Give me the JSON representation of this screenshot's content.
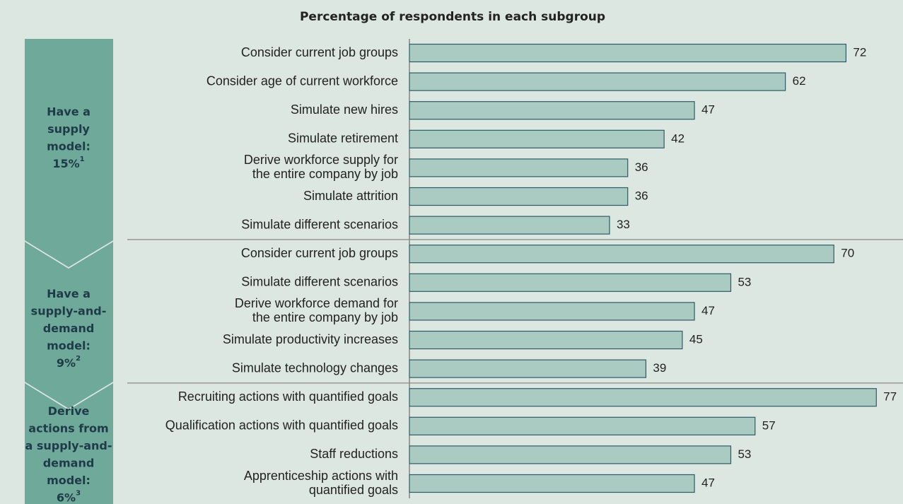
{
  "chart_data": {
    "type": "bar",
    "orientation": "horizontal",
    "title": "Percentage of respondents in each subgroup",
    "color": "#a9cbc2",
    "edgecolor": "#2e5a66",
    "xlim": [
      0,
      80
    ],
    "groups": [
      {
        "label": [
          "Have a",
          "supply",
          "model:",
          "15%"
        ],
        "note": "1",
        "categories": [
          [
            "Consider current job groups"
          ],
          [
            "Consider age of current workforce"
          ],
          [
            "Simulate new hires"
          ],
          [
            "Simulate retirement"
          ],
          [
            "Derive workforce supply for",
            "the entire company by job"
          ],
          [
            "Simulate attrition"
          ],
          [
            "Simulate different scenarios"
          ]
        ],
        "values": [
          72,
          62,
          47,
          42,
          36,
          36,
          33
        ]
      },
      {
        "label": [
          "Have a",
          "supply-and-",
          "demand",
          "model:",
          "9%"
        ],
        "note": "2",
        "categories": [
          [
            "Consider current job groups"
          ],
          [
            "Simulate different scenarios"
          ],
          [
            "Derive workforce demand for",
            "the entire company by job"
          ],
          [
            "Simulate productivity increases"
          ],
          [
            "Simulate technology changes"
          ]
        ],
        "values": [
          70,
          53,
          47,
          45,
          39
        ]
      },
      {
        "label": [
          "Derive",
          "actions from",
          "a supply-and-",
          "demand",
          "model:",
          "6%"
        ],
        "note": "3",
        "categories": [
          [
            "Recruiting actions with quantified goals"
          ],
          [
            "Qualification actions with quantified goals"
          ],
          [
            "Staff reductions"
          ],
          [
            "Apprenticeship actions with",
            "quantified goals"
          ]
        ],
        "values": [
          77,
          57,
          53,
          47
        ]
      }
    ]
  }
}
